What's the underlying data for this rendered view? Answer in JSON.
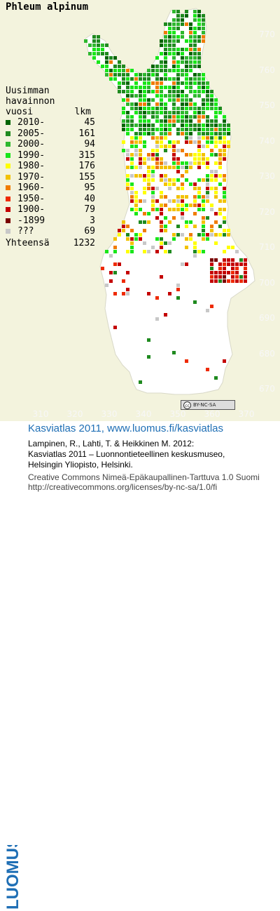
{
  "map": {
    "species": "Phleum alpinum",
    "legend_heading": [
      "Uusimman",
      "havainnon"
    ],
    "legend_col_year": "vuosi",
    "legend_col_count": "lkm",
    "legend": [
      {
        "label": "2010-",
        "count": "45",
        "color": "#006400"
      },
      {
        "label": "2005-",
        "count": "161",
        "color": "#1f8a1f"
      },
      {
        "label": "2000-",
        "count": "94",
        "color": "#2fb82f"
      },
      {
        "label": "1990-",
        "count": "315",
        "color": "#19e619"
      },
      {
        "label": "1980-",
        "count": "176",
        "color": "#ffff00"
      },
      {
        "label": "1970-",
        "count": "155",
        "color": "#f2c200"
      },
      {
        "label": "1960-",
        "count": "95",
        "color": "#f07c00"
      },
      {
        "label": "1950-",
        "count": "40",
        "color": "#ee2a00"
      },
      {
        "label": "1900-",
        "count": "79",
        "color": "#c40000"
      },
      {
        "label": "-1899",
        "count": "3",
        "color": "#7a0000"
      },
      {
        "label": "???",
        "count": "69",
        "color": "#c8c8c8"
      }
    ],
    "total_label": "Yhteensä",
    "total_value": "1232",
    "y_ticks": [
      "770",
      "760",
      "750",
      "740",
      "730",
      "720",
      "710",
      "700",
      "690",
      "680",
      "670"
    ],
    "x_ticks": [
      "310",
      "320",
      "330",
      "340",
      "350",
      "360",
      "370"
    ],
    "land_color": "#ffffff",
    "background_color": "#f3f3dd",
    "license_badge": "BY-NC-SA"
  },
  "footer": {
    "logo_text": "LUOMUS",
    "title": "Kasviatlas 2011, www.luomus.fi/kasviatlas",
    "citation": [
      "Lampinen, R., Lahti, T. & Heikkinen M. 2012:",
      "Kasviatlas 2011 – Luonnontieteellinen keskusmuseo,",
      "Helsingin Yliopisto, Helsinki."
    ],
    "license": [
      "Creative Commons Nimeä-Epäkaupallinen-Tarttuva 1.0 Suomi",
      "http://creativecommons.org/licenses/by-nc-sa/1.0/fi"
    ],
    "logo_color": "#1f6fb5"
  }
}
